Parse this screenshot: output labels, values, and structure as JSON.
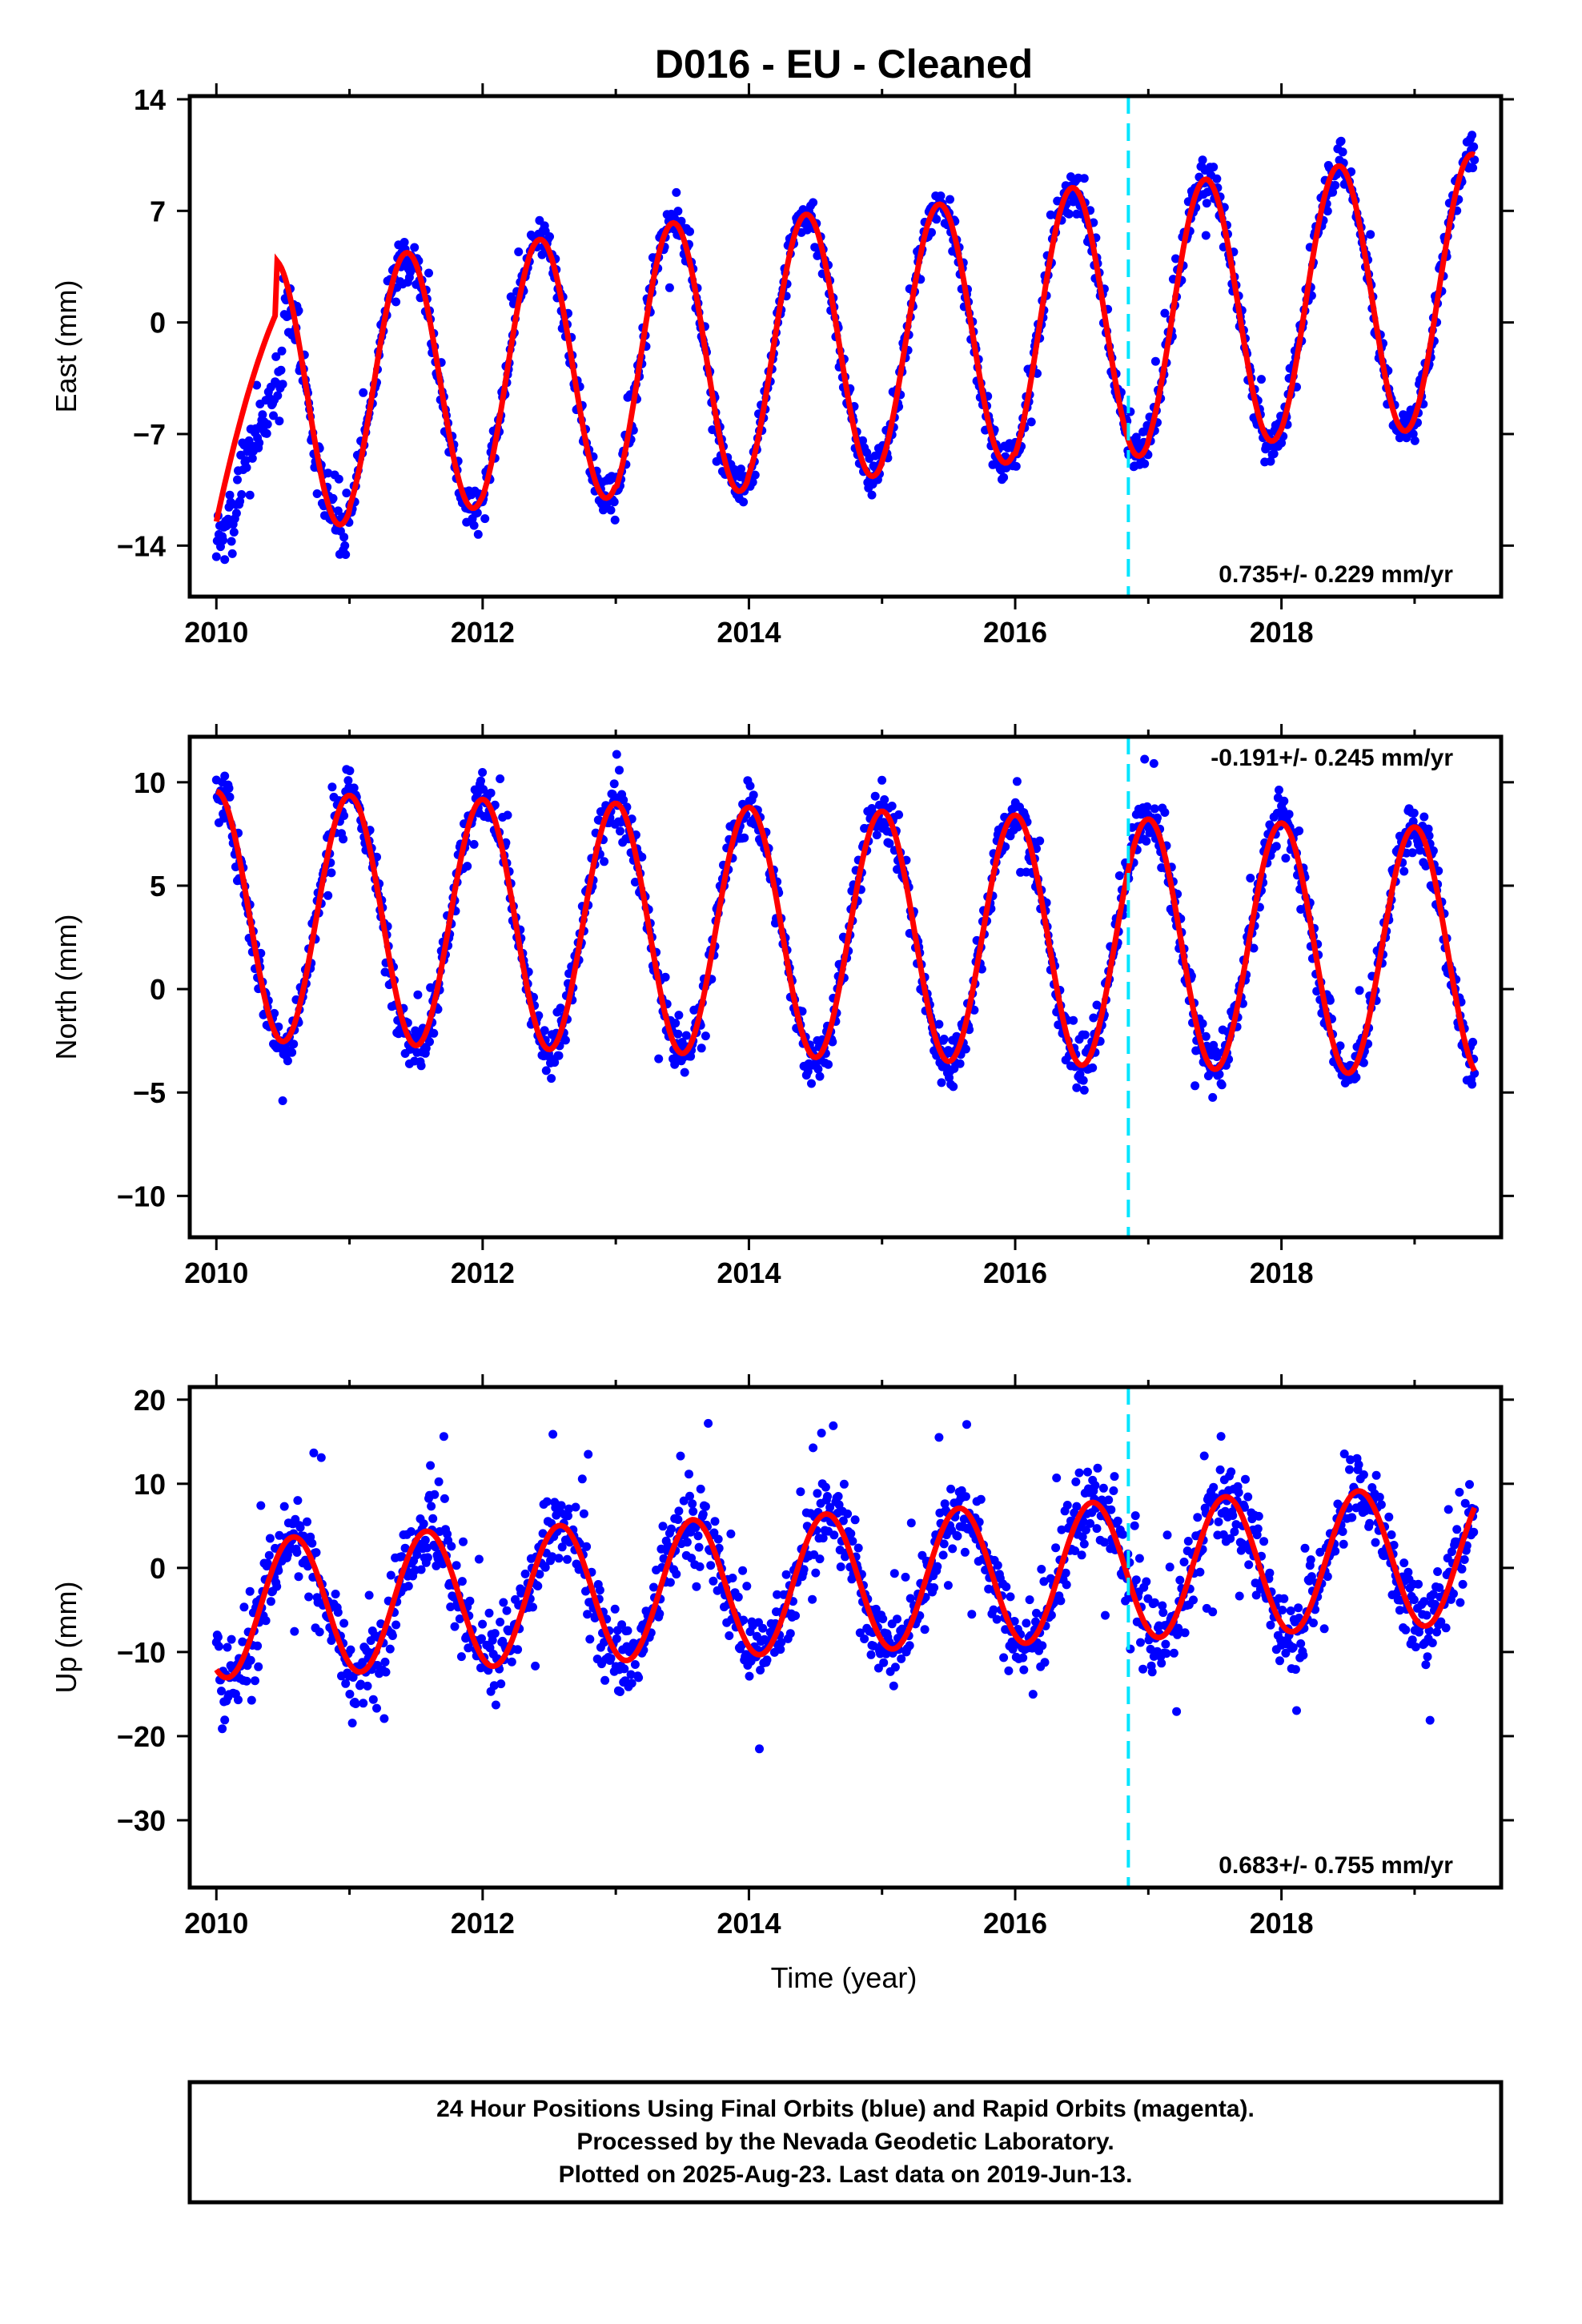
{
  "title": "D016  - EU - Cleaned",
  "xlabel": "Time (year)",
  "colors": {
    "data": "#0000ff",
    "model": "#ff0000",
    "event": "#00e5ff",
    "frame": "#000000"
  },
  "footer": {
    "lines": [
      "24 Hour Positions Using Final Orbits (blue) and Rapid Orbits (magenta).",
      "Processed by the Nevada Geodetic Laboratory.",
      "Plotted on 2025-Aug-23. Last data on 2019-Jun-13."
    ]
  },
  "chart_data": [
    {
      "type": "scatter",
      "panel": "east",
      "ylabel": "East (mm)",
      "xlim": [
        2009.8,
        2019.65
      ],
      "ylim": [
        -17.2,
        14.2
      ],
      "xticks": [
        2010,
        2012,
        2014,
        2016,
        2018
      ],
      "yticks": [
        -14,
        -7,
        0,
        7,
        14
      ],
      "yticklabels": [
        "−14",
        "−7",
        "0",
        "7",
        "14"
      ],
      "rate_label": "0.735+/- 0.229 mm/yr",
      "event_line_x": 2016.85,
      "series": [
        {
          "role": "data",
          "x_range": [
            2010.0,
            2019.45
          ],
          "noise": 1.4,
          "spikes": 3,
          "initial_transient": {
            "until": 2011.0
          }
        },
        {
          "role": "model",
          "trend": 0.735,
          "offset": -1.2,
          "annual": [
            {
              "year": 2010,
              "amp": 8.5
            },
            {
              "year": 2011,
              "amp": 8.2
            },
            {
              "year": 2012,
              "amp": 8.3
            },
            {
              "year": 2013,
              "amp": 8.6
            },
            {
              "year": 2014,
              "amp": 8.4
            },
            {
              "year": 2015,
              "amp": 8.3
            },
            {
              "year": 2016,
              "amp": 8.6
            },
            {
              "year": 2017,
              "amp": 8.4
            },
            {
              "year": 2018,
              "amp": 8.5
            },
            {
              "year": 2019,
              "amp": 8.5
            }
          ],
          "phase_peak": 0.43
        }
      ]
    },
    {
      "type": "scatter",
      "panel": "north",
      "ylabel": "North (mm)",
      "xlim": [
        2009.8,
        2019.65
      ],
      "ylim": [
        -12,
        12.2
      ],
      "xticks": [
        2010,
        2012,
        2014,
        2016,
        2018
      ],
      "yticks": [
        -10,
        -5,
        0,
        5,
        10
      ],
      "yticklabels": [
        "−10",
        "−5",
        "0",
        "5",
        "10"
      ],
      "rate_label": "-0.191+/- 0.245 mm/yr",
      "event_line_x": 2016.85,
      "series": [
        {
          "role": "data",
          "x_range": [
            2010.0,
            2019.45
          ],
          "noise": 1.3,
          "spikes": 3
        },
        {
          "role": "model",
          "trend": -0.191,
          "offset": 2.6,
          "amp": 6.0,
          "phase_peak": 0.0
        }
      ]
    },
    {
      "type": "scatter",
      "panel": "up",
      "ylabel": "Up (mm)",
      "xlim": [
        2009.8,
        2019.65
      ],
      "ylim": [
        -38,
        21.5
      ],
      "xticks": [
        2010,
        2012,
        2014,
        2016,
        2018
      ],
      "yticks": [
        -30,
        -20,
        -10,
        0,
        10,
        20
      ],
      "yticklabels": [
        "−30",
        "−20",
        "−10",
        "0",
        "10",
        "20"
      ],
      "rate_label": "0.683+/- 0.755 mm/yr",
      "event_line_x": 2016.85,
      "series": [
        {
          "role": "data",
          "x_range": [
            2010.0,
            2019.45
          ],
          "noise": 4.5,
          "spikes": 10
        },
        {
          "role": "model",
          "trend": 0.683,
          "offset": -1.5,
          "amp": 8.2,
          "phase_peak": 0.58
        }
      ]
    }
  ]
}
